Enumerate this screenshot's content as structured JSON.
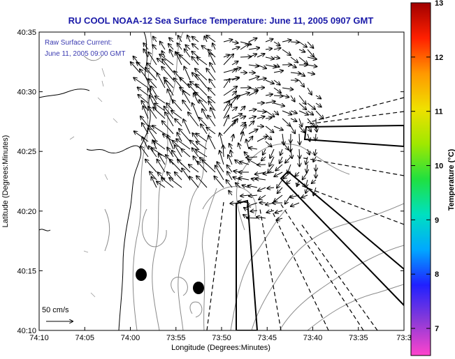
{
  "title": "RU COOL  NOAA-12  Sea Surface Temperature:  June 11, 2005 0907 GMT",
  "overlay": {
    "line1": "Raw Surface Current:",
    "line2": "June 11, 2005 09:00 GMT",
    "scale_label": "50 cm/s"
  },
  "axes": {
    "xlabel": "Longitude (Degrees:Minutes)",
    "ylabel": "Latitude (Degrees:Minutes)",
    "xticks": [
      "74:10",
      "74:05",
      "74:00",
      "73:55",
      "73:50",
      "73:45",
      "73:40",
      "73:35",
      "73:3"
    ],
    "yticks": [
      "40:35",
      "40:30",
      "40:25",
      "40:20",
      "40:15",
      "40:10"
    ]
  },
  "colorbar": {
    "label": "Temperature (°C)",
    "ticks": [
      "13",
      "12",
      "11",
      "10",
      "9",
      "8",
      "7"
    ],
    "range": [
      6.5,
      13
    ],
    "colors": [
      "#ff44cc",
      "#8a3ad8",
      "#2020ff",
      "#00a8ff",
      "#00e0c0",
      "#20e040",
      "#a0e800",
      "#f0e000",
      "#ff9800",
      "#ff2000",
      "#a00000"
    ]
  },
  "map": {
    "lon_range": [
      "74:10",
      "73:30"
    ],
    "lat_range": [
      "40:10",
      "40:35"
    ],
    "land_side": "west",
    "markers": 2
  }
}
